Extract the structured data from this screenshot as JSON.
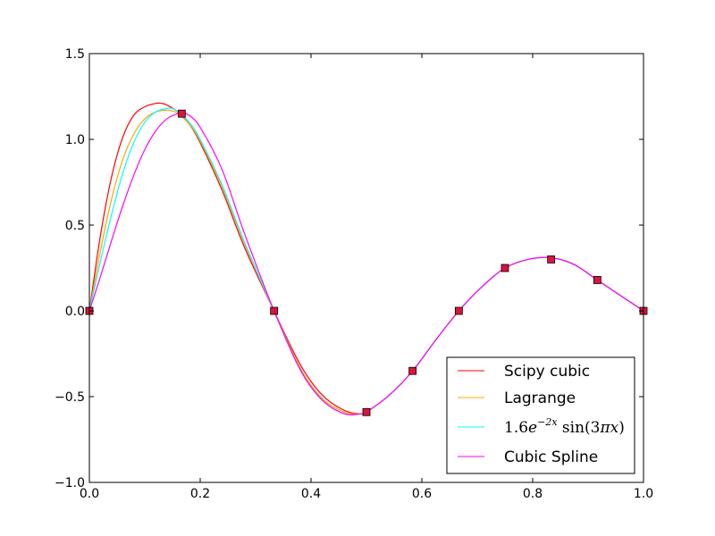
{
  "chart_data": {
    "type": "line",
    "title": "",
    "xlabel": "",
    "ylabel": "",
    "xlim": [
      0.0,
      1.0
    ],
    "ylim": [
      -1.0,
      1.5
    ],
    "x_ticks": [
      0.0,
      0.2,
      0.4,
      0.6,
      0.8,
      1.0
    ],
    "x_tick_labels": [
      "0.0",
      "0.2",
      "0.4",
      "0.6",
      "0.8",
      "1.0"
    ],
    "y_ticks": [
      -1.0,
      -0.5,
      0.0,
      0.5,
      1.0,
      1.5
    ],
    "y_tick_labels": [
      "−1.0",
      "−0.5",
      "0.0",
      "0.5",
      "1.0",
      "1.5"
    ],
    "grid": false,
    "legend_position": "lower-right",
    "series": [
      {
        "name": "Scipy cubic",
        "color": "#ff0000",
        "x": [
          0,
          0.02,
          0.04,
          0.06,
          0.08,
          0.1,
          0.12,
          0.13,
          0.14,
          0.16,
          0.18,
          0.2,
          0.24,
          0.28,
          0.3333,
          0.38,
          0.42,
          0.46,
          0.49,
          0.5,
          0.5417,
          0.5833,
          0.625,
          0.6667,
          0.7083,
          0.75,
          0.7917,
          0.8333,
          0.875,
          0.9167,
          0.9583,
          1.0
        ],
        "y": [
          0,
          0.44,
          0.78,
          1.01,
          1.14,
          1.19,
          1.21,
          1.21,
          1.2,
          1.16,
          1.09,
          0.98,
          0.7,
          0.37,
          0,
          -0.31,
          -0.49,
          -0.58,
          -0.6,
          -0.59,
          -0.49,
          -0.35,
          -0.17,
          0,
          0.14,
          0.25,
          0.3,
          0.31,
          0.27,
          0.18,
          0.09,
          0
        ]
      },
      {
        "name": "Lagrange",
        "color": "#ffa500",
        "x": [
          0,
          0.02,
          0.04,
          0.06,
          0.08,
          0.1,
          0.12,
          0.14,
          0.15,
          0.16,
          0.18,
          0.2,
          0.24,
          0.28,
          0.3333,
          0.38,
          0.42,
          0.46,
          0.49,
          0.5,
          0.5417,
          0.5833,
          0.625,
          0.6667,
          0.7083,
          0.75,
          0.7917,
          0.8333,
          0.875,
          0.9167,
          0.9583,
          1.0
        ],
        "y": [
          0,
          0.35,
          0.65,
          0.88,
          1.03,
          1.12,
          1.16,
          1.17,
          1.165,
          1.15,
          1.09,
          0.99,
          0.72,
          0.39,
          0,
          -0.33,
          -0.51,
          -0.59,
          -0.6,
          -0.59,
          -0.49,
          -0.35,
          -0.17,
          0,
          0.14,
          0.25,
          0.3,
          0.31,
          0.27,
          0.18,
          0.09,
          0
        ]
      },
      {
        "name": "$1.6e^{-2x}\\sin(3\\pi x)$",
        "color": "#00ffff",
        "x": [
          0,
          0.02,
          0.04,
          0.06,
          0.08,
          0.1,
          0.12,
          0.14,
          0.15,
          0.16,
          0.18,
          0.2,
          0.24,
          0.28,
          0.3333,
          0.38,
          0.42,
          0.46,
          0.49,
          0.5,
          0.5417,
          0.5833,
          0.625,
          0.6667,
          0.7083,
          0.75,
          0.7917,
          0.8333,
          0.875,
          0.9167,
          0.9583,
          1.0
        ],
        "y": [
          0,
          0.29,
          0.56,
          0.8,
          0.98,
          1.1,
          1.16,
          1.18,
          1.18,
          1.16,
          1.1,
          1.0,
          0.73,
          0.4,
          0,
          -0.34,
          -0.52,
          -0.6,
          -0.6,
          -0.59,
          -0.49,
          -0.35,
          -0.17,
          0,
          0.14,
          0.25,
          0.3,
          0.31,
          0.27,
          0.18,
          0.09,
          0
        ]
      },
      {
        "name": "Cubic Spline",
        "color": "#ff00ff",
        "x": [
          0,
          0.02,
          0.04,
          0.06,
          0.08,
          0.1,
          0.12,
          0.14,
          0.16,
          0.17,
          0.18,
          0.2,
          0.24,
          0.28,
          0.3333,
          0.38,
          0.42,
          0.46,
          0.49,
          0.5,
          0.5417,
          0.5833,
          0.625,
          0.6667,
          0.7083,
          0.75,
          0.7917,
          0.8333,
          0.875,
          0.9167,
          0.9583,
          1.0
        ],
        "y": [
          0,
          0.2,
          0.41,
          0.61,
          0.79,
          0.94,
          1.05,
          1.12,
          1.15,
          1.15,
          1.14,
          1.07,
          0.82,
          0.45,
          0,
          -0.34,
          -0.52,
          -0.6,
          -0.6,
          -0.59,
          -0.49,
          -0.35,
          -0.17,
          0,
          0.14,
          0.25,
          0.3,
          0.31,
          0.27,
          0.18,
          0.09,
          0
        ]
      }
    ],
    "markers": {
      "shape": "square",
      "fill": "#dc143c",
      "edge": "#000000",
      "x": [
        0,
        0.1667,
        0.3333,
        0.5,
        0.5833,
        0.6667,
        0.75,
        0.8333,
        0.9167,
        1.0
      ],
      "y": [
        0,
        1.15,
        0,
        -0.59,
        -0.35,
        0,
        0.25,
        0.3,
        0.18,
        0
      ]
    }
  }
}
